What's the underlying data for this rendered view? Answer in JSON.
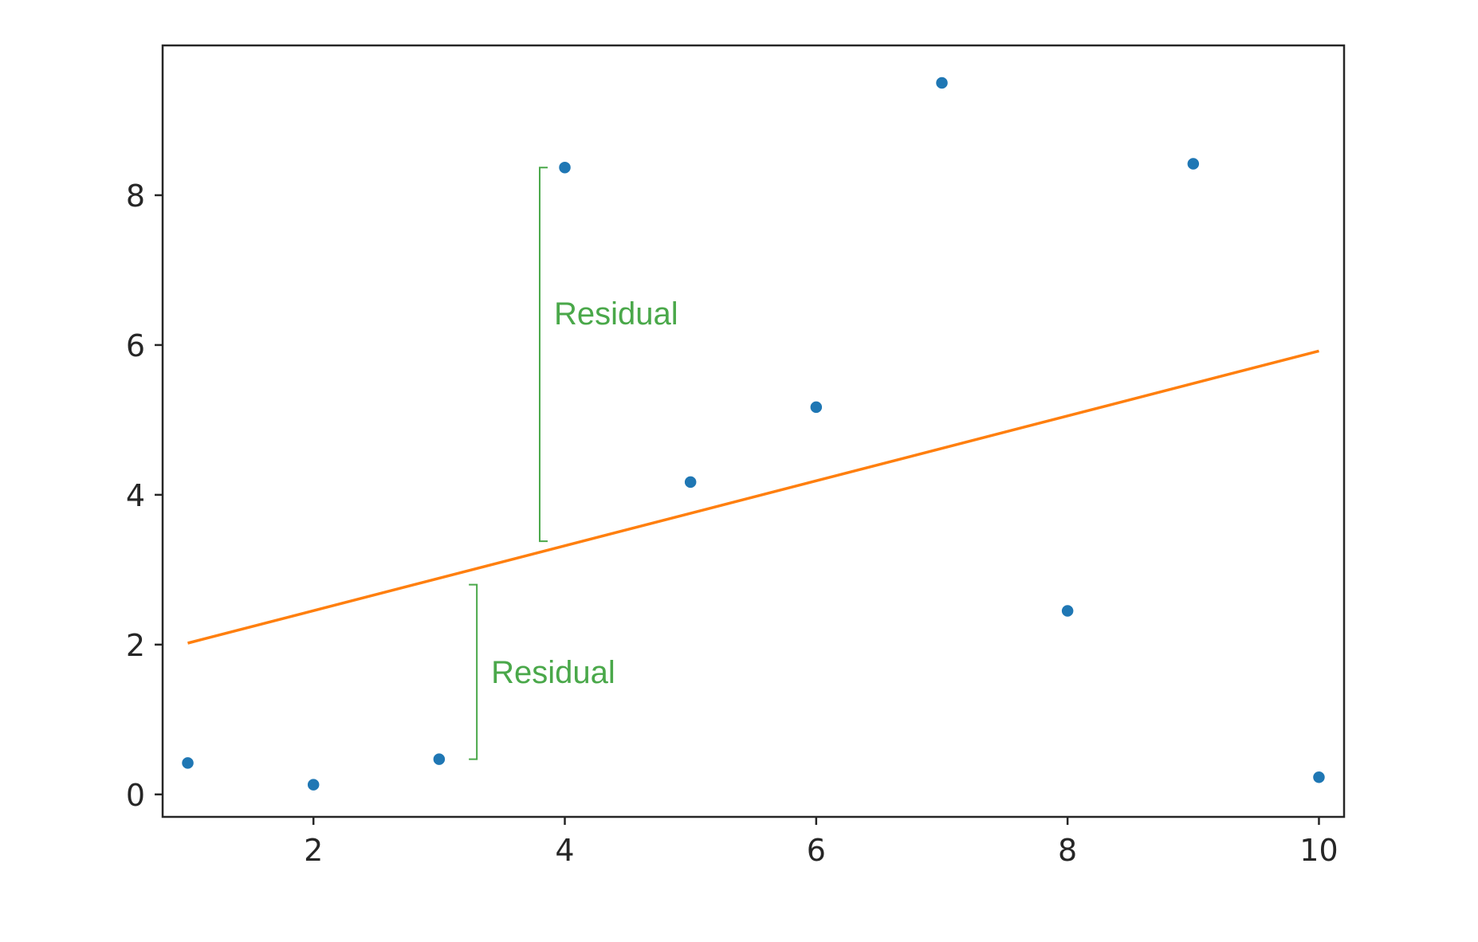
{
  "chart_data": {
    "type": "scatter",
    "title": "",
    "xlabel": "",
    "ylabel": "",
    "xlim": [
      0.8,
      10.2
    ],
    "ylim": [
      -0.3,
      10.0
    ],
    "xticks": [
      2,
      4,
      6,
      8,
      10
    ],
    "yticks": [
      0,
      2,
      4,
      6,
      8
    ],
    "grid": false,
    "series": [
      {
        "kind": "scatter",
        "color": "#1f77b4",
        "points": [
          {
            "x": 1,
            "y": 0.42
          },
          {
            "x": 2,
            "y": 0.13
          },
          {
            "x": 3,
            "y": 0.47
          },
          {
            "x": 4,
            "y": 8.37
          },
          {
            "x": 5,
            "y": 4.17
          },
          {
            "x": 6,
            "y": 5.17
          },
          {
            "x": 7,
            "y": 9.5
          },
          {
            "x": 8,
            "y": 2.45
          },
          {
            "x": 9,
            "y": 8.42
          },
          {
            "x": 10,
            "y": 0.23
          }
        ]
      },
      {
        "kind": "line",
        "color": "#ff7f0e",
        "points": [
          {
            "x": 1,
            "y": 2.02
          },
          {
            "x": 10,
            "y": 5.92
          }
        ]
      }
    ],
    "annotations": [
      {
        "text": "Residual",
        "color": "#4aa84a",
        "bracket": {
          "x": 3.8,
          "y1": 3.38,
          "y2": 8.37
        },
        "side": "right"
      },
      {
        "text": "Residual",
        "color": "#4aa84a",
        "bracket": {
          "x": 3.3,
          "y1": 0.47,
          "y2": 2.8
        },
        "side": "left"
      }
    ]
  }
}
